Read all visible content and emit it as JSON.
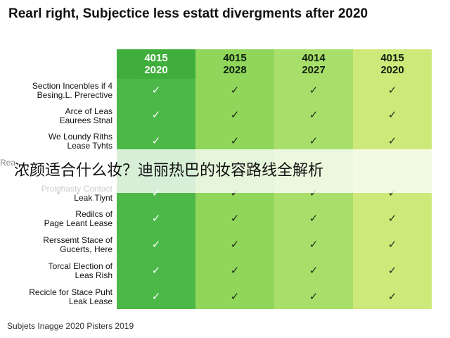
{
  "title": "Rearl right, Subjectice less estatt divergments after 2020",
  "columns": [
    {
      "line1": "4015",
      "line2": "2020",
      "color": "#4cb848"
    },
    {
      "line1": "4015",
      "line2": "2028",
      "color": "#8fd65a"
    },
    {
      "line1": "4014",
      "line2": "2027",
      "color": "#a8df6a"
    },
    {
      "line1": "4015",
      "line2": "2020",
      "color": "#cde97a"
    }
  ],
  "rows": [
    {
      "line1": "Section Incenbles if 4",
      "line2": "Besing.L. Prerective"
    },
    {
      "line1": "Arce of Leas",
      "line2": "Eaurees Stnal"
    },
    {
      "line1": "We Loundy Riths",
      "line2": "Lease Tyhts"
    },
    {
      "line1": "Proighasty Contact",
      "line2": "Leak Tiynt"
    },
    {
      "line1": "Redilcs of",
      "line2": "Page Leant Lease"
    },
    {
      "line1": "Rerssemt Stace of",
      "line2": "Gucerts, Here"
    },
    {
      "line1": "Torcal Election of",
      "line2": "Leas Rish"
    },
    {
      "line1": "Recicle for Stace Puht",
      "line2": "Leak Lease"
    }
  ],
  "check_symbol": "✓",
  "overlay_caption": "浓颜适合什么妆？迪丽热巴的妆容路线全解析",
  "overlay_faint_text": "Rea",
  "footer": "Subjets Inagge 2020 Pisters 2019"
}
